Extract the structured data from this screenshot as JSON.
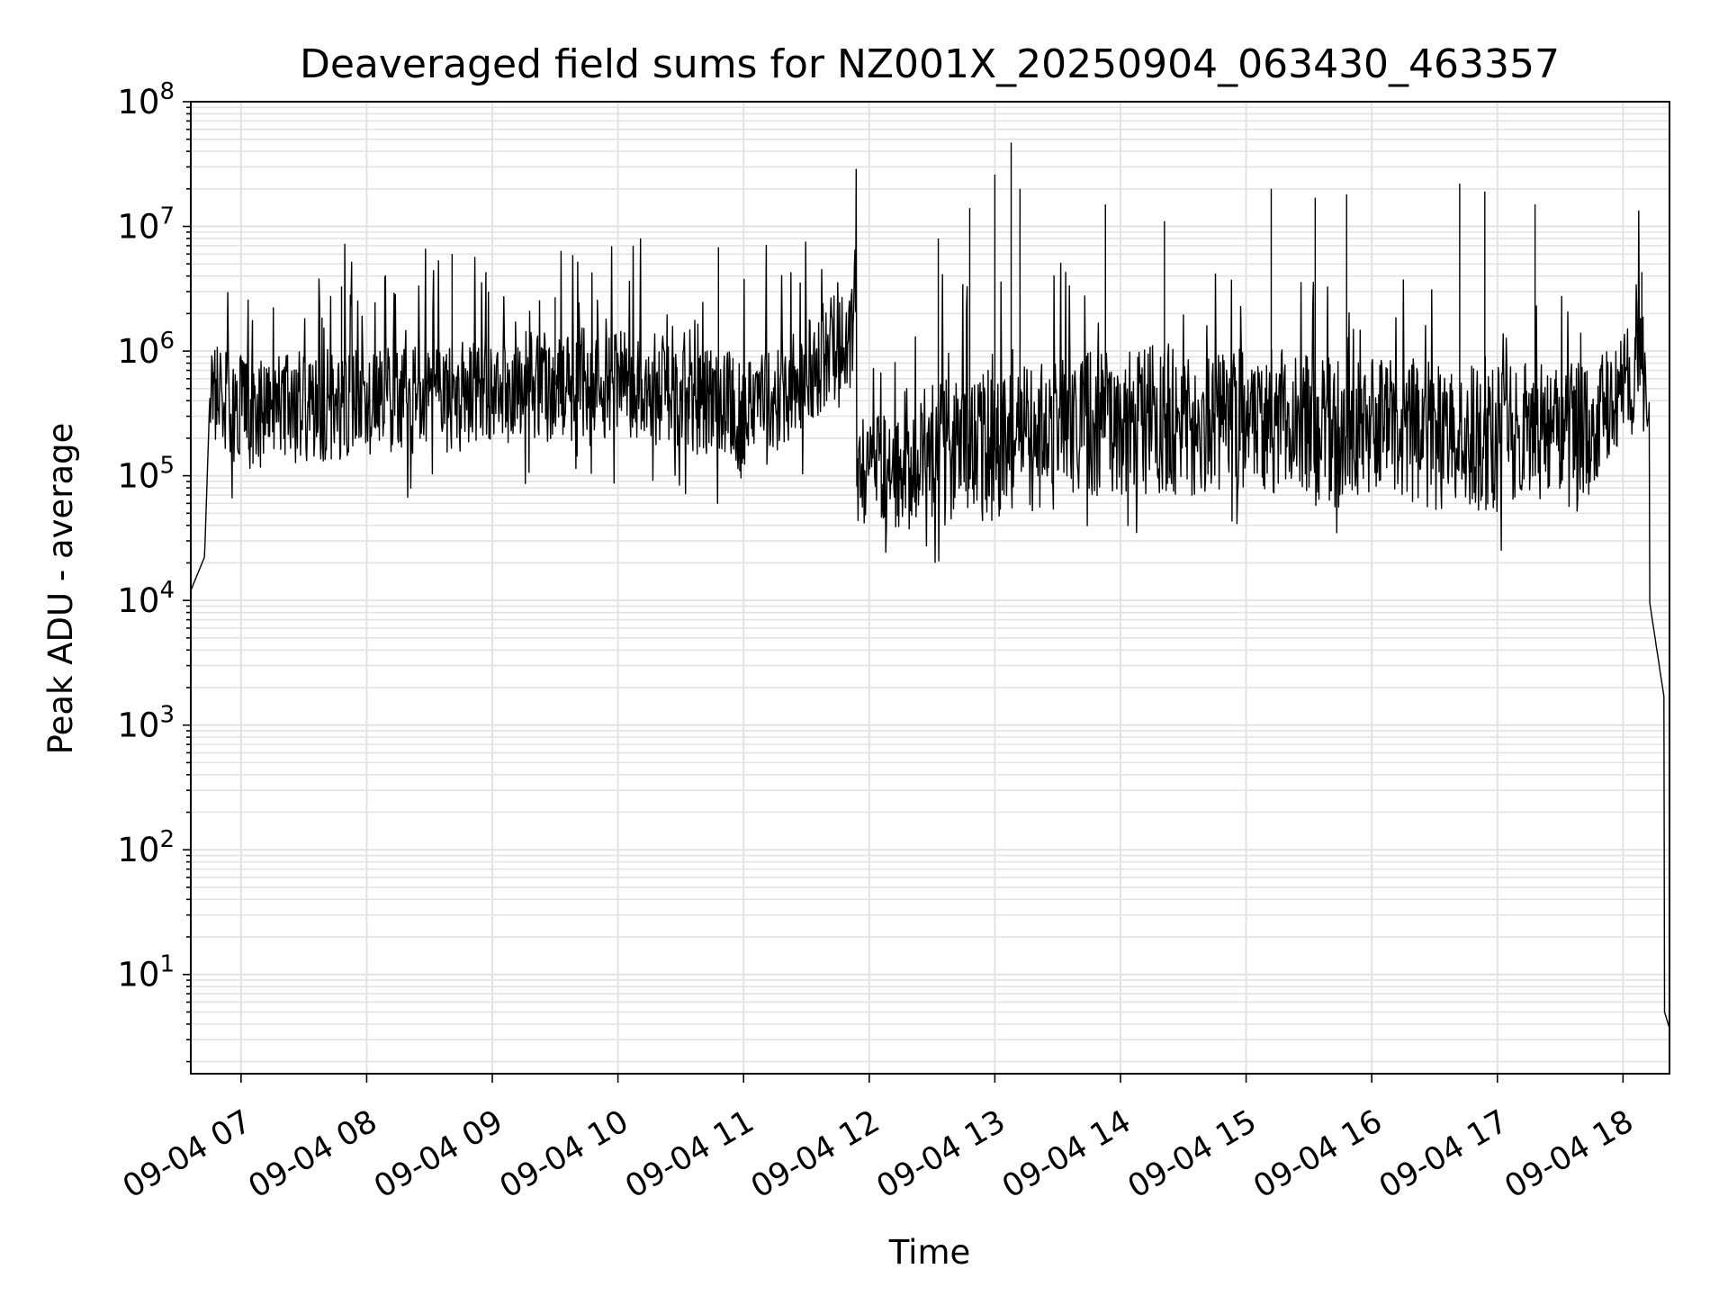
{
  "chart_data": {
    "type": "line",
    "title": "Deaveraged field sums for NZ001X_20250904_063430_463357",
    "xlabel": "Time",
    "ylabel": "Peak ADU - average",
    "yscale": "log",
    "ylim": [
      1.6,
      100000000
    ],
    "xlim_hours": [
      6.6,
      18.37
    ],
    "grid": true,
    "x_ticks": [
      {
        "hour": 7,
        "label": "09-04 07"
      },
      {
        "hour": 8,
        "label": "09-04 08"
      },
      {
        "hour": 9,
        "label": "09-04 09"
      },
      {
        "hour": 10,
        "label": "09-04 10"
      },
      {
        "hour": 11,
        "label": "09-04 11"
      },
      {
        "hour": 12,
        "label": "09-04 12"
      },
      {
        "hour": 13,
        "label": "09-04 13"
      },
      {
        "hour": 14,
        "label": "09-04 14"
      },
      {
        "hour": 15,
        "label": "09-04 15"
      },
      {
        "hour": 16,
        "label": "09-04 16"
      },
      {
        "hour": 17,
        "label": "09-04 17"
      },
      {
        "hour": 18,
        "label": "09-04 18"
      }
    ],
    "y_ticks": [
      {
        "exp": 1,
        "base": "10",
        "sup": "1"
      },
      {
        "exp": 2,
        "base": "10",
        "sup": "2"
      },
      {
        "exp": 3,
        "base": "10",
        "sup": "3"
      },
      {
        "exp": 4,
        "base": "10",
        "sup": "4"
      },
      {
        "exp": 5,
        "base": "10",
        "sup": "5"
      },
      {
        "exp": 6,
        "base": "10",
        "sup": "6"
      },
      {
        "exp": 7,
        "base": "10",
        "sup": "7"
      },
      {
        "exp": 8,
        "base": "10",
        "sup": "8"
      }
    ],
    "series": [
      {
        "name": "Peak ADU - average",
        "color": "#000000",
        "baseline_segments": [
          {
            "from_hour": 6.6,
            "to_hour": 6.71,
            "from_log": 4.08,
            "to_log": 4.35
          },
          {
            "from_hour": 6.71,
            "to_hour": 6.75,
            "from_log": 4.35,
            "to_log": 5.6
          },
          {
            "from_hour": 6.75,
            "to_hour": 7.0,
            "from_log": 5.6,
            "to_log": 5.55
          },
          {
            "from_hour": 7.0,
            "to_hour": 8.0,
            "from_log": 5.5,
            "to_log": 5.6
          },
          {
            "from_hour": 8.0,
            "to_hour": 9.0,
            "from_log": 5.6,
            "to_log": 5.65
          },
          {
            "from_hour": 9.0,
            "to_hour": 10.0,
            "from_log": 5.7,
            "to_log": 5.75
          },
          {
            "from_hour": 10.0,
            "to_hour": 10.95,
            "from_log": 5.75,
            "to_log": 5.55
          },
          {
            "from_hour": 10.95,
            "to_hour": 11.9,
            "from_log": 5.4,
            "to_log": 6.15
          },
          {
            "from_hour": 11.9,
            "to_hour": 12.5,
            "from_log": 5.05,
            "to_log": 5.0
          },
          {
            "from_hour": 12.5,
            "to_hour": 13.5,
            "from_log": 5.2,
            "to_log": 5.3
          },
          {
            "from_hour": 13.5,
            "to_hour": 15.5,
            "from_log": 5.45,
            "to_log": 5.45
          },
          {
            "from_hour": 15.5,
            "to_hour": 17.8,
            "from_log": 5.35,
            "to_log": 5.3
          },
          {
            "from_hour": 17.8,
            "to_hour": 18.1,
            "from_log": 5.5,
            "to_log": 5.8
          },
          {
            "from_hour": 18.1,
            "to_hour": 18.16,
            "from_log": 6.1,
            "to_log": 6.0
          },
          {
            "from_hour": 18.16,
            "to_hour": 18.21,
            "from_log": 6.0,
            "to_log": 5.3
          },
          {
            "from_hour": 18.21,
            "to_hour": 18.33,
            "from_log": 4.0,
            "to_log": 3.2
          },
          {
            "from_hour": 18.33,
            "to_hour": 18.37,
            "from_log": 0.7,
            "to_log": 0.57
          }
        ],
        "noise_amplitude_log": 0.45,
        "spikes": [
          {
            "hour": 7.8,
            "value": 3300000
          },
          {
            "hour": 8.68,
            "value": 6000000
          },
          {
            "hour": 9.5,
            "value": 2700000
          },
          {
            "hour": 10.8,
            "value": 6800000
          },
          {
            "hour": 11.75,
            "value": 3000000
          },
          {
            "hour": 12.55,
            "value": 8000000
          },
          {
            "hour": 12.8,
            "value": 14000000
          },
          {
            "hour": 13.0,
            "value": 26000000
          },
          {
            "hour": 13.13,
            "value": 47000000
          },
          {
            "hour": 13.2,
            "value": 20000000
          },
          {
            "hour": 13.88,
            "value": 15000000
          },
          {
            "hour": 14.35,
            "value": 11000000
          },
          {
            "hour": 15.2,
            "value": 20000000
          },
          {
            "hour": 15.55,
            "value": 17000000
          },
          {
            "hour": 15.8,
            "value": 18000000
          },
          {
            "hour": 16.7,
            "value": 22000000
          },
          {
            "hour": 16.9,
            "value": 19000000
          },
          {
            "hour": 17.3,
            "value": 15000000
          },
          {
            "hour": 18.15,
            "value": 4300000
          }
        ]
      }
    ]
  }
}
